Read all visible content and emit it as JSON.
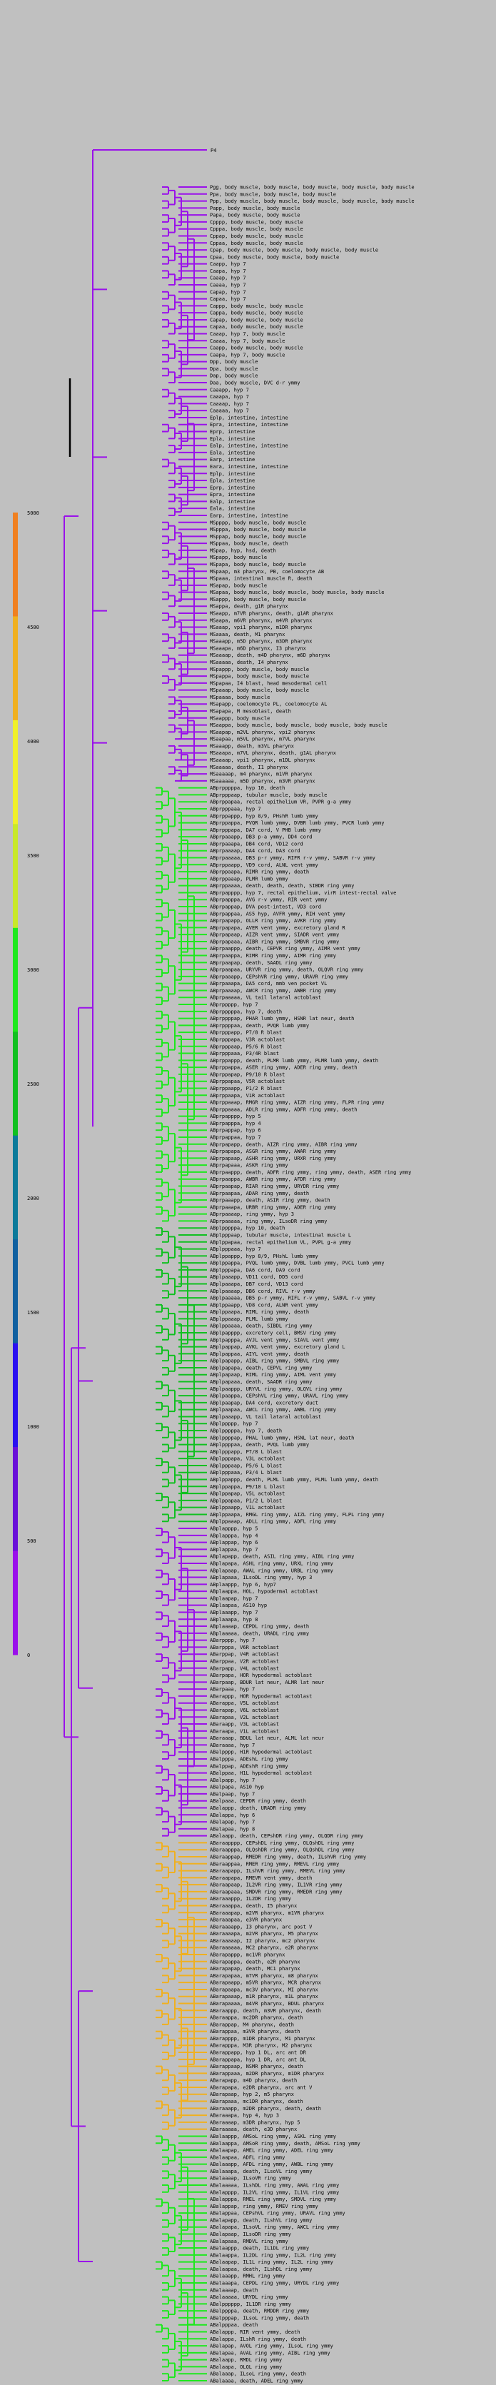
{
  "root_label": "P4",
  "scale": {
    "ticks": [
      0,
      500,
      1000,
      1500,
      2000,
      2500,
      3000,
      3500,
      4000,
      4500,
      5000
    ],
    "colors": [
      "#9a10ea",
      "#6a10d8",
      "#2a10f0",
      "#1060a0",
      "#0c7a9a",
      "#10c020",
      "#1ee81e",
      "#c8e828",
      "#f0f028",
      "#f0b020",
      "#f08020"
    ]
  },
  "clusters": [
    {
      "name": "top-group",
      "color": "#9a10ea",
      "leaves": [
        "Pgg, body muscle, body muscle, body muscle, body muscle, body muscle",
        "Ppa, body muscle, body muscle, body muscle",
        "Ppp, body muscle, body muscle, body muscle, body muscle, body muscle",
        "Papp, body muscle, body muscle",
        "Papa, body muscle, body muscle",
        "Cpppp, body muscle, body muscle",
        "Cpppa, body muscle, body muscle",
        "Cppap, body muscle, body muscle",
        "Cppaa, body muscle, body muscle",
        "Cpap, body muscle, body muscle, body muscle, body muscle",
        "Cpaa, body muscle, body muscle, body muscle",
        "Caapp, hyp 7",
        "Caapa, hyp 7",
        "Caaap, hyp 7",
        "Caaaa, hyp 7",
        "Capap, hyp 7",
        "Capaa, hyp 7",
        "Cappp, body muscle, body muscle",
        "Cappa, body muscle, body muscle",
        "Capap, body muscle, body muscle",
        "Capaa, body muscle, body muscle",
        "Caaap, hyp 7, body muscle",
        "Caaaa, hyp 7, body muscle",
        "Caapp, body muscle, body muscle",
        "Caapa, hyp 7, body muscle",
        "Dpp, body muscle",
        "Dpa, body muscle",
        "Dap, body muscle",
        "Daa, body muscle, DVC d-r ymmy"
      ]
    },
    {
      "name": "intestine-group",
      "color": "#9a10ea",
      "leaves": [
        "Caaapp, hyp 7",
        "Caaapa, hyp 7",
        "Caaaap, hyp 7",
        "Caaaaa, hyp 7",
        "Eplp, intestine, intestine",
        "Epra, intestine, intestine",
        "Eprp, intestine",
        "Epla, intestine",
        "Ealp, intestine, intestine",
        "Eala, intestine",
        "Earp, intestine",
        "Eara, intestine, intestine",
        "Eplp, intestine",
        "Epla, intestine",
        "Eprp, intestine",
        "Epra, intestine",
        "Ealp, intestine",
        "Eala, intestine",
        "Earp, intestine, intestine"
      ]
    },
    {
      "name": "ms-group",
      "color": "#9a10ea",
      "leaves": [
        "MSpppp, body muscle, body muscle",
        "MSpppa, body muscle, body muscle",
        "MSppap, body muscle, body muscle",
        "MSppaa, body muscle, death",
        "MSpap, hyp, hsd, death",
        "MSpapp, body muscle",
        "MSpapa, body muscle, body muscle",
        "MSpaap, m3 pharynx, PB, coelomocyte AB",
        "MSpaaa, intestinal muscle R, death",
        "MSapap, body muscle",
        "MSapaa, body muscle, body muscle, body muscle, body muscle",
        "MSappp, body muscle, body muscle",
        "MSappa, death, g1R pharynx",
        "MSaapp, m7VR pharynx, death, g1AR pharynx",
        "MSaapa, m6VR pharynx, m4VR pharynx",
        "MSaaap, vpi1 pharynx, m1DR pharynx",
        "MSaaaa, death, M1 pharynx",
        "MSaaapp, m5D pharynx, m3DR pharynx",
        "MSaaapa, m6D pharynx, I3 pharynx",
        "MSaaaap, death, m4D pharynx, m6D pharynx",
        "MSaaaaa, death, I4 pharynx",
        "MSpappp, body muscle, body muscle",
        "MSpappa, body muscle, body muscle",
        "MSpapaa, I4 blast, head mesodermal cell",
        "MSpaaap, body muscle, body muscle"
      ]
    },
    {
      "name": "ms-anterior-group",
      "color": "#9a10ea",
      "leaves": [
        "MSpaaaa, body muscle",
        "MSapapp, coelomocyte PL, coelomocyte AL",
        "MSapapa, M mesoblast, death",
        "MSaappp, body muscle",
        "MSaappa, body muscle, body muscle, body muscle, body muscle",
        "MSaapap, m2VL pharynx, vpi2 pharynx",
        "MSaapaa, m5VL pharynx, m7VL pharynx",
        "MSaaapp, death, m3VL pharynx",
        "MSaaapa, m7VL pharynx, death, g1AL pharynx",
        "MSaaaap, vpi1 pharynx, m1DL pharynx",
        "MSaaaaa, death, I1 pharynx",
        "MSaaaaap, m4 pharynx, m1VR pharynx",
        "MSaaaaaa, m5D pharynx, m3VR pharynx"
      ]
    },
    {
      "name": "ab-upper-group",
      "color": "#1ee81e",
      "leaves": [
        "ABprpppppa, hyp 10, death",
        "ABprpppaap, tubular muscle, body muscle",
        "ABprppapaa, rectal epithelium VR, PVPR g-a ymmy",
        "ABprpppaaa, hyp 7",
        "ABprppappp, hyp 8/9, PHshR lumb ymmy",
        "ABprppappa, PVQR lumb ymmy, DVBR lumb ymmy, PVCR lumb ymmy",
        "ABprpppapa, DA7 cord, V PHB lumb ymmy",
        "ABprpaaapp, DB3 p-a ymmy, DD4 cord",
        "ABprpaaapa, DB4 cord, VD12 cord",
        "ABprpaaaap, DA4 cord, DA3 cord",
        "ABprpaaaaa, DB3 p-r ymmy, RIFR r-v ymmy, SABVR r-v ymmy",
        "ABprppaapp, VD9 cord, ALNL vent ymmy",
        "ABprppaapa, RIMR ring ymmy, death",
        "ABprppaaap, PLMR lumb ymmy",
        "ABprppaaaa, death, death, death, SIBDR ring ymmy",
        "ABprpapppp, hyp 7, rectal epithelium, virR intest-rectal valve",
        "ABprpapppa, AVG r-v ymmy, RIR vent ymmy",
        "ABprpappap, DVA post-intest, VD3 cord",
        "ABprpappaa, AS5 hyp, AVFR ymmy, RIH vent ymmy",
        "ABprpapapp, OLLR ring ymmy, AVKR ring ymmy",
        "ABprpapapa, AVER vent ymmy, excretory gland R",
        "ABprpapaap, AIZR vent ymmy, SIADR vent ymmy",
        "ABprpapaaa, AIBR ring ymmy, SMBVR ring ymmy",
        "ABprpaappp, death, CEPVR ring ymmy, AIMR vent ymmy",
        "ABprpaappa, RIMR ring ymmy, AIMR ring ymmy",
        "ABprpaapap, death, SAADL ring ymmy",
        "ABprpaapaa, URYVR ring ymmy, death, OLQVR ring ymmy",
        "ABprpaaapp, CEPshVR ring ymmy, URAVR ring ymmy",
        "ABprpaaapa, DA5 cord, mmb ven pocket VL",
        "ABprpaaaap, AWCR ring ymmy, AWBR ring ymmy",
        "ABprpaaaaa, VL tail lataral actoblast",
        "ABprppppp, hyp 7",
        "ABprpppppa, hyp 7, death",
        "ABprppppap, PHAR lumb ymmy, HSNR lat neur, death",
        "ABprppppaa, death, PVQR lumb ymmy",
        "ABprpppapp, P7/8 R blast",
        "ABprpppapa, V3R actoblast",
        "ABprpppaap, P5/6 R blast",
        "ABprpppaaa, P3/4R blast",
        "ABprppappp, death, PLMR lumb ymmy, PLMR lumb ymmy, death",
        "ABprppappa, ASER ring ymmy, ADER ring ymmy, death",
        "ABprppapap, P9/10 R blast",
        "ABprppapaa, V5R actoblast",
        "ABprppaapp, P1/2 R blast",
        "ABprppaapa, V1R actoblast",
        "ABprppaaap, RMGR ring ymmy, AIZR ring ymmy, FLPR ring ymmy",
        "ABprppaaaa, ADLR ring ymmy, ADFR ring ymmy, death",
        "ABprpapppp, hyp 5",
        "ABprpapppa, hyp 4",
        "ABprpappap, hyp 6",
        "ABprpappaa, hyp 7",
        "ABprpapapp, death, AIZR ring ymmy, AIBR ring ymmy",
        "ABprpapapa, ASGR ring ymmy, AWAR ring ymmy",
        "ABprpapaap, ASHR ring ymmy, URXR ring ymmy",
        "ABprpapaaa, ASKR ring ymmy",
        "ABprpaappp, death, ADFR ring ymmy, ring ymmy, death, ASER ring ymmy",
        "ABprpaappa, AWBR ring ymmy, AFDR ring ymmy",
        "ABprpaapap, RIAR ring ymmy, URYDR ring ymmy",
        "ABprpaapaa, ADAR ring ymmy, death",
        "ABprpaaapp, death, ASIR ring ymmy, death",
        "ABprpaaapa, URBR ring ymmy, ADER ring ymmy",
        "ABprpaaaap, ring ymmy, hyp 3",
        "ABprpaaaaa, ring ymmy, ILsoDR ring ymmy"
      ]
    },
    {
      "name": "ab-mid-group",
      "color": "#10c020",
      "leaves": [
        "ABplpppppa, hyp 10, death",
        "ABplpppaap, tubular muscle, intestinal muscle L",
        "ABplppapaa, rectal epithelium VL, PVPL g-a ymmy",
        "ABplpppaaa, hyp 7",
        "ABplppappp, hyp 8/9, PHshL lumb ymmy",
        "ABplppappa, PVQL lumb ymmy, DVBL lumb ymmy, PVCL lumb ymmy",
        "ABplpppapa, DA6 cord, DA9 cord",
        "ABplpaaapp, VD11 cord, DD5 cord",
        "ABplpaaapa, DB7 cord, VD13 cord",
        "ABplpaaaap, DB6 cord, RIVL r-v ymmy",
        "ABplpaaaaa, DB5 p-r ymmy, RIFL r-v ymmy, SABVL r-v ymmy",
        "ABplppaapp, VD8 cord, ALNR vent ymmy",
        "ABplppaapa, RIML ring ymmy, death",
        "ABplppaaap, PLML lumb ymmy",
        "ABplppaaaa, death, SIBDL ring ymmy",
        "ABplpapppp, excretory cell, BMSV ring ymmy",
        "ABplpapppa, AVJL vent ymmy, SIAVL vent ymmy",
        "ABplpappap, AVKL vent ymmy, excretory gland L",
        "ABplpappaa, AIYL vent ymmy, death",
        "ABplpapapp, AIBL ring ymmy, SMBVL ring ymmy",
        "ABplpapapa, death, CEPVL ring ymmy",
        "ABplpapaap, RIML ring ymmy, AIML vent ymmy",
        "ABplpapaaa, death, SAADR ring ymmy",
        "ABplpaappp, URYVL ring ymmy, OLQVL ring ymmy",
        "ABplpaappa, CEPshVL ring ymmy, URAVL ring ymmy",
        "ABplpaapap, DA4 cord, excretory duct",
        "ABplpaapaa, AWCL ring ymmy, AWBL ring ymmy",
        "ABplpaaapp, VL tail lataral actoblast",
        "ABplppppp, hyp 7",
        "ABplpppppa, hyp 7, death",
        "ABplppppap, PHAL lumb ymmy, HSNL lat neur, death",
        "ABplppppaa, death, PVQL lumb ymmy",
        "ABplpppapp, P7/8 L blast",
        "ABplpppapa, V3L actoblast",
        "ABplpppaap, P5/6 L blast",
        "ABplpppaaa, P3/4 L blast",
        "ABplppappp, death, PLML lumb ymmy, PLML lumb ymmy, death",
        "ABplppappa, P9/10 L blast",
        "ABplppapap, V5L actoblast",
        "ABplppapaa, P1/2 L blast",
        "ABplppaapp, V1L actoblast",
        "ABplppaapa, RMGL ring ymmy, AIZL ring ymmy, FLPL ring ymmy",
        "ABplppaaap, ADLL ring ymmy, ADFL ring ymmy"
      ]
    },
    {
      "name": "ab-lower-purple",
      "color": "#9a10ea",
      "leaves": [
        "ABplapppp, hyp 5",
        "ABplapppa, hyp 4",
        "ABplappap, hyp 6",
        "ABplappaa, hyp 7",
        "ABplapapp, death, ASIL ring ymmy, AIBL ring ymmy",
        "ABplapapa, ASHL ring ymmy, URXL ring ymmy",
        "ABplapaap, AWAL ring ymmy, URBL ring ymmy",
        "ABplapaaa, ILsoDL ring ymmy, hyp 3",
        "ABplaappp, hyp 6, hyp7",
        "ABplaappa, HOL, hypodermal actoblast",
        "ABplaapap, hyp 7",
        "ABplaapaa, AS10 hyp",
        "ABplaaapp, hyp 7",
        "ABplaaapa, hyp 8",
        "ABplaaaap, CEPDL ring ymmy, death",
        "ABplaaaaa, death, URADL ring ymmy",
        "ABarpppp, hyp 7",
        "ABarpppa, V6R actoblast",
        "ABarppap, V4R actoblast",
        "ABarppaa, V2R actoblast",
        "ABarpapp, V4L actoblast",
        "ABarpapa, HOR hypodermal actoblast",
        "ABarpaap, BDUR lat neur, ALMR lat neur",
        "ABarpaaa, hyp 7",
        "ABarappp, HOR hypodermal actoblast",
        "ABarappa, V5L actoblast",
        "ABarapap, V6L actoblast",
        "ABarapaa, V2L actoblast",
        "ABaraapp, V3L actoblast",
        "ABaraapa, V1L actoblast",
        "ABaraaap, BDUL lat neur, ALML lat neur",
        "ABaraaaa, hyp 7",
        "ABalpppp, H1R hypodermal actoblast",
        "ABalpppa, ADEshL ring ymmy",
        "ABalppap, ADEshR ring ymmy",
        "ABalppaa, H1L hypodermal actoblast",
        "ABalpapp, hyp 7",
        "ABalpapa, AS10 hyp",
        "ABalpaap, hyp 7",
        "ABalpaaa, CEPDR ring ymmy, death",
        "ABalappp, death, URADR ring ymmy",
        "ABalappa, hyp 6",
        "ABalapap, hyp 7",
        "ABalapaa, hyp 8",
        "ABalaapp, death, CEPshDR ring ymmy, OLQDR ring ymmy"
      ]
    },
    {
      "name": "ab-pharynx-group",
      "color": "#f0b020",
      "leaves": [
        "ABaraapppp, CEPshDL ring ymmy, OLQshDL ring ymmy",
        "ABaraapppa, OLQshDR ring ymmy, OLQshDL ring ymmy",
        "ABaraappap, RMEDR ring ymmy, death, ILshVR ring ymmy",
        "ABaraappaa, RMER ring ymmy, RMEVL ring ymmy",
        "ABaraapapp, ILshVR ring ymmy, RMEVL ring ymmy",
        "ABaraapapa, RMEVR vent ymmy, death",
        "ABaraapaap, IL2VR ring ymmy, IL1VR ring ymmy",
        "ABaraapaaa, SMDVR ring ymmy, RMEDR ring ymmy",
        "ABaraaappp, IL2DR ring ymmy",
        "ABaraaappa, death, I5 pharynx",
        "ABaraaapap, m2VR pharynx, m1VR pharynx",
        "ABaraaapaa, e3VR pharynx",
        "ABaraaaapp, I3 pharynx, arc post V",
        "ABaraaaapa, m2VR pharynx, M5 pharynx",
        "ABaraaaaap, I2 pharynx, mc2 pharynx",
        "ABaraaaaaa, MC2 pharynx, e2R pharynx",
        "ABarapappp, mc1VR pharynx",
        "ABarapappa, death, e2R pharynx",
        "ABarapapap, death, MC1 pharynx",
        "ABarapapaa, m7VR pharynx, m8 pharynx",
        "ABarapaapp, m5VR pharynx, MCR pharynx",
        "ABarapaapa, mc3V pharynx, MI pharynx",
        "ABarapaaap, m1R pharynx, m1L pharynx",
        "ABarapaaaa, m4VR pharynx, BDUL pharynx",
        "ABaraappp, death, m3VR pharynx, death",
        "ABaraappa, mc2DR pharynx, death",
        "ABarappap, M4 pharynx, death",
        "ABarappaa, m3VR pharynx, death",
        "ABarapppp, m1DR pharynx, M1 pharynx",
        "ABarapppa, M3R pharynx, M2 pharynx",
        "ABarappapp, hyp 1 DL, arc ant DR",
        "ABarappapa, hyp 1 DR, arc ant DL",
        "ABarappaap, NSMR pharynx, death",
        "ABarappaaa, m2DR pharynx, m1DR pharynx",
        "ABarapapp, m4D pharynx, death",
        "ABarapapa, e2DR pharynx, arc ant V",
        "ABarapaap, hyp 2, m5 pharynx",
        "ABarapaaa, mc1DR pharynx, death",
        "ABaraaapp, m2DR pharynx, death, death",
        "ABaraaapa, hyp 4, hyp 3",
        "ABaraaaap, m3DR pharynx, hyp 5",
        "ABaraaaaa, death, e3D pharynx"
      ]
    },
    {
      "name": "ab-bottom-group",
      "color": "#1ee81e",
      "leaves": [
        "ABalaappp, AMSoL ring ymmy, ASKL ring ymmy",
        "ABalaappa, AMSoR ring ymmy, death, AMSoL ring ymmy",
        "ABalaapap, AMEL ring ymmy, ADEL ring ymmy",
        "ABalaapaa, ADFL ring ymmy",
        "ABalaaapp, AFDL ring ymmy, AWBL ring ymmy",
        "ABalaaapa, death, ILsoVL ring ymmy",
        "ABalaaaap, ILsoVR ring ymmy",
        "ABalaaaaa, ILshDL ring ymmy, AWAL ring ymmy",
        "ABalapppp, IL2VL ring ymmy, IL1VL ring ymmy",
        "ABalapppa, RMEL ring ymmy, SMDVL ring ymmy",
        "ABalappap, ring ymmy, RMEV ring ymmy",
        "ABalappaa, CEPshVL ring ymmy, URAVL ring ymmy",
        "ABalapapp, death, ILshVL ring ymmy",
        "ABalapapa, ILsoVL ring ymmy, AWCL ring ymmy",
        "ABalapaap, ILsoDR ring ymmy",
        "ABalapaaa, RMDVL ring ymmy",
        "ABalaappp, death, IL1DL ring ymmy",
        "ABalaappa, IL2DL ring ymmy, IL2L ring ymmy",
        "ABalaapap, IL1L ring ymmy, IL2L ring ymmy",
        "ABalaapaa, death, ILshDL ring ymmy",
        "ABalaaapp, RMHL ring ymmy",
        "ABalaaapa, CEPDL ring ymmy, URYDL ring ymmy",
        "ABalaaaap, death",
        "ABalaaaaa, URYDL ring ymmy",
        "ABalpppppp, IL1DR ring ymmy",
        "ABalppppa, death, RMDDR ring ymmy",
        "ABalpppap, ILsoL ring ymmy, death",
        "ABalpppaa, death",
        "ABalappp, RIR vent ymmy, death",
        "ABalappa, ILshR ring ymmy, death",
        "ABalapap, AVOL ring ymmy, ILsoL ring ymmy",
        "ABalapaa, AVAL ring ymmy, AIBL ring ymmy",
        "ABalaapp, RMDL ring ymmy",
        "ABalaapa, OLQL ring ymmy",
        "ABalaaap, ILsoL ring ymmy, death",
        "ABalaaaa, death, ADEL ring ymmy"
      ]
    }
  ]
}
